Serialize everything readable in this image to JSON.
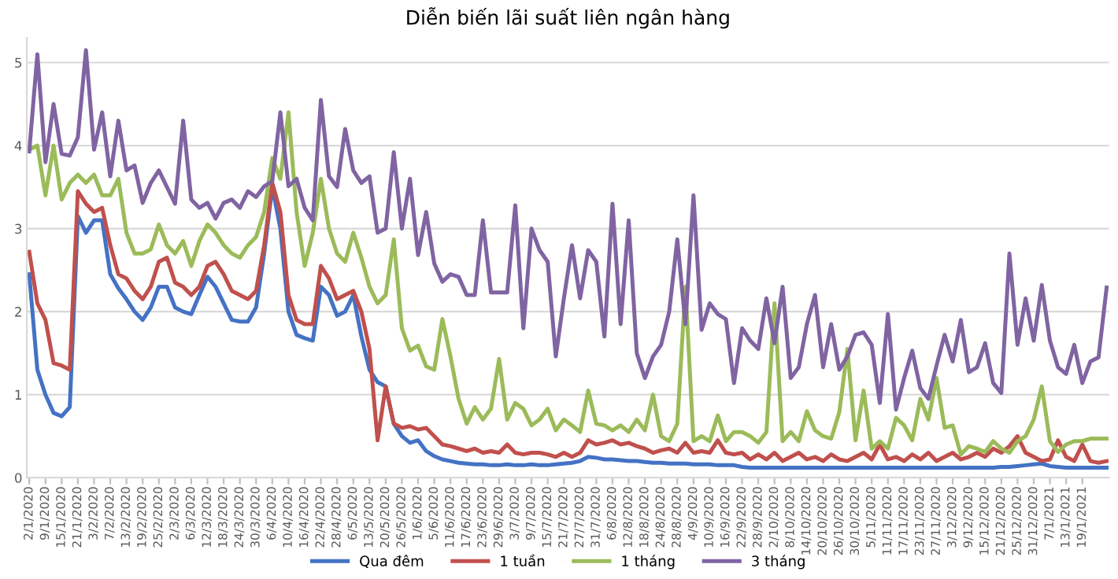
{
  "chart_data": {
    "type": "line",
    "title": "Diễn biến lãi suất liên ngân hàng",
    "categories": [
      "2/1/2020",
      null,
      "9/1/2020",
      null,
      "15/1/2020",
      null,
      "21/1/2020",
      null,
      "3/2/2020",
      null,
      "7/2/2020",
      null,
      "13/2/2020",
      null,
      "19/2/2020",
      null,
      "25/2/2020",
      null,
      "2/3/2020",
      null,
      "6/3/2020",
      null,
      "12/3/2020",
      null,
      "18/3/2020",
      null,
      "24/3/2020",
      null,
      "30/3/2020",
      null,
      "6/4/2020",
      null,
      "10/4/2020",
      null,
      "16/4/2020",
      null,
      "22/4/2020",
      null,
      "28/4/2020",
      null,
      "6/5/2020",
      null,
      "13/5/2020",
      null,
      "20/5/2020",
      null,
      "26/5/2020",
      null,
      "1/6/2020",
      null,
      "5/6/2020",
      null,
      "11/6/2020",
      null,
      "17/6/2020",
      null,
      "23/6/2020",
      null,
      "29/6/2020",
      null,
      "3/7/2020",
      null,
      "9/7/2020",
      null,
      "15/7/2020",
      null,
      "21/7/2020",
      null,
      "27/7/2020",
      null,
      "31/7/2020",
      null,
      "6/8/2020",
      null,
      "12/8/2020",
      null,
      "18/8/2020",
      null,
      "24/8/2020",
      null,
      "28/8/2020",
      null,
      "4/9/2020",
      null,
      "10/9/2020",
      null,
      "16/9/2020",
      null,
      "22/9/2020",
      null,
      "28/9/2020",
      null,
      "2/10/2020",
      null,
      "8/10/2020",
      null,
      "14/10/2020",
      null,
      "20/10/2020",
      null,
      "26/10/2020",
      null,
      "30/10/2020",
      null,
      "5/11/2020",
      null,
      "11/11/2020",
      null,
      "17/11/2020",
      null,
      "23/11/2020",
      null,
      "27/11/2020",
      null,
      "3/12/2020",
      null,
      "9/12/2020",
      null,
      "15/12/2020",
      null,
      "21/12/2020",
      null,
      "25/12/2020",
      null,
      "31/12/2020",
      null,
      "7/1/2021",
      null,
      "13/1/2021",
      null,
      "19/1/2021",
      null,
      null,
      null
    ],
    "series": [
      {
        "name": "Qua đêm",
        "color": "#4472c4",
        "values": [
          2.45,
          1.3,
          1.0,
          0.78,
          0.74,
          0.85,
          3.15,
          2.95,
          3.1,
          3.1,
          2.45,
          2.28,
          2.15,
          2.0,
          1.9,
          2.05,
          2.3,
          2.3,
          2.05,
          2.0,
          1.97,
          2.2,
          2.42,
          2.3,
          2.1,
          1.9,
          1.88,
          1.88,
          2.05,
          2.7,
          3.5,
          3.0,
          2.0,
          1.72,
          1.68,
          1.65,
          2.3,
          2.2,
          1.95,
          2.0,
          2.2,
          1.7,
          1.3,
          1.15,
          1.1,
          0.65,
          0.5,
          0.42,
          0.45,
          0.32,
          0.26,
          0.22,
          0.2,
          0.18,
          0.17,
          0.16,
          0.16,
          0.15,
          0.15,
          0.16,
          0.15,
          0.15,
          0.16,
          0.15,
          0.15,
          0.16,
          0.17,
          0.18,
          0.2,
          0.25,
          0.24,
          0.22,
          0.22,
          0.21,
          0.2,
          0.2,
          0.19,
          0.18,
          0.18,
          0.17,
          0.17,
          0.17,
          0.16,
          0.16,
          0.16,
          0.15,
          0.15,
          0.15,
          0.13,
          0.12,
          0.12,
          0.12,
          0.12,
          0.12,
          0.12,
          0.12,
          0.12,
          0.12,
          0.12,
          0.12,
          0.12,
          0.12,
          0.12,
          0.12,
          0.12,
          0.12,
          0.12,
          0.12,
          0.12,
          0.12,
          0.12,
          0.12,
          0.12,
          0.12,
          0.12,
          0.12,
          0.12,
          0.12,
          0.12,
          0.12,
          0.13,
          0.13,
          0.14,
          0.15,
          0.16,
          0.17,
          0.14,
          0.13,
          0.12,
          0.12,
          0.12,
          0.12,
          0.12,
          0.12
        ]
      },
      {
        "name": "1 tuần",
        "color": "#c0504d",
        "values": [
          2.72,
          2.1,
          1.9,
          1.38,
          1.35,
          1.3,
          3.45,
          3.3,
          3.2,
          3.25,
          2.8,
          2.45,
          2.4,
          2.25,
          2.15,
          2.3,
          2.6,
          2.65,
          2.35,
          2.3,
          2.2,
          2.3,
          2.55,
          2.6,
          2.45,
          2.25,
          2.2,
          2.15,
          2.25,
          2.8,
          3.55,
          3.2,
          2.2,
          1.9,
          1.85,
          1.85,
          2.55,
          2.4,
          2.15,
          2.2,
          2.25,
          2.0,
          1.55,
          0.45,
          1.1,
          0.65,
          0.6,
          0.62,
          0.58,
          0.6,
          0.5,
          0.4,
          0.38,
          0.35,
          0.32,
          0.35,
          0.3,
          0.32,
          0.3,
          0.4,
          0.3,
          0.28,
          0.3,
          0.3,
          0.28,
          0.25,
          0.3,
          0.25,
          0.3,
          0.45,
          0.4,
          0.42,
          0.45,
          0.4,
          0.42,
          0.38,
          0.35,
          0.3,
          0.33,
          0.35,
          0.3,
          0.42,
          0.3,
          0.32,
          0.3,
          0.45,
          0.3,
          0.28,
          0.3,
          0.22,
          0.28,
          0.22,
          0.3,
          0.2,
          0.25,
          0.3,
          0.22,
          0.25,
          0.2,
          0.28,
          0.22,
          0.2,
          0.25,
          0.3,
          0.22,
          0.4,
          0.22,
          0.25,
          0.2,
          0.28,
          0.22,
          0.3,
          0.2,
          0.25,
          0.3,
          0.22,
          0.25,
          0.3,
          0.25,
          0.35,
          0.3,
          0.38,
          0.5,
          0.3,
          0.25,
          0.2,
          0.22,
          0.45,
          0.25,
          0.2,
          0.4,
          0.2,
          0.18,
          0.2
        ]
      },
      {
        "name": "1 tháng",
        "color": "#9bbb59",
        "values": [
          3.95,
          4.0,
          3.4,
          4.0,
          3.35,
          3.55,
          3.65,
          3.55,
          3.65,
          3.4,
          3.4,
          3.6,
          2.95,
          2.7,
          2.7,
          2.75,
          3.05,
          2.8,
          2.7,
          2.85,
          2.55,
          2.85,
          3.05,
          2.95,
          2.8,
          2.7,
          2.65,
          2.8,
          2.9,
          3.2,
          3.85,
          3.6,
          4.4,
          3.2,
          2.55,
          2.95,
          3.6,
          3.0,
          2.7,
          2.6,
          2.95,
          2.65,
          2.3,
          2.1,
          2.2,
          2.87,
          1.8,
          1.53,
          1.59,
          1.34,
          1.3,
          1.91,
          1.46,
          0.95,
          0.65,
          0.85,
          0.7,
          0.83,
          1.43,
          0.7,
          0.9,
          0.83,
          0.63,
          0.7,
          0.83,
          0.57,
          0.7,
          0.63,
          0.55,
          1.05,
          0.65,
          0.63,
          0.57,
          0.63,
          0.55,
          0.7,
          0.57,
          1.0,
          0.5,
          0.44,
          0.65,
          2.3,
          0.44,
          0.5,
          0.44,
          0.75,
          0.44,
          0.55,
          0.55,
          0.5,
          0.42,
          0.55,
          2.1,
          0.44,
          0.55,
          0.44,
          0.8,
          0.57,
          0.5,
          0.47,
          0.79,
          1.55,
          0.45,
          1.05,
          0.35,
          0.44,
          0.35,
          0.72,
          0.63,
          0.45,
          0.95,
          0.7,
          1.2,
          0.6,
          0.63,
          0.28,
          0.38,
          0.35,
          0.31,
          0.44,
          0.35,
          0.3,
          0.44,
          0.5,
          0.7,
          1.1,
          0.44,
          0.31,
          0.4,
          0.44,
          0.44,
          0.47,
          0.47,
          0.47
        ]
      },
      {
        "name": "3 tháng",
        "color": "#8064a2",
        "values": [
          3.93,
          5.1,
          3.8,
          4.5,
          3.9,
          3.88,
          4.1,
          5.15,
          3.95,
          4.4,
          3.63,
          4.3,
          3.7,
          3.76,
          3.31,
          3.55,
          3.7,
          3.5,
          3.3,
          4.3,
          3.35,
          3.25,
          3.31,
          3.12,
          3.31,
          3.35,
          3.25,
          3.45,
          3.38,
          3.51,
          3.57,
          4.4,
          3.51,
          3.6,
          3.25,
          3.1,
          4.55,
          3.63,
          3.5,
          4.2,
          3.7,
          3.55,
          3.63,
          2.95,
          3.0,
          3.92,
          3.0,
          3.6,
          2.68,
          3.2,
          2.58,
          2.36,
          2.45,
          2.42,
          2.2,
          2.2,
          3.1,
          2.23,
          2.23,
          2.23,
          3.28,
          1.8,
          3.0,
          2.74,
          2.6,
          1.46,
          2.16,
          2.8,
          2.16,
          2.74,
          2.6,
          1.7,
          3.3,
          1.85,
          3.1,
          1.5,
          1.2,
          1.46,
          1.6,
          2.0,
          2.87,
          1.85,
          3.4,
          1.78,
          2.1,
          1.97,
          1.91,
          1.14,
          1.8,
          1.65,
          1.55,
          2.16,
          1.62,
          2.3,
          1.2,
          1.33,
          1.85,
          2.2,
          1.33,
          1.85,
          1.3,
          1.46,
          1.72,
          1.75,
          1.6,
          0.9,
          1.97,
          0.82,
          1.2,
          1.53,
          1.08,
          0.95,
          1.35,
          1.72,
          1.4,
          1.9,
          1.27,
          1.33,
          1.62,
          1.14,
          1.02,
          2.7,
          1.6,
          2.16,
          1.65,
          2.32,
          1.65,
          1.33,
          1.25,
          1.6,
          1.14,
          1.4,
          1.45,
          2.29
        ]
      }
    ],
    "ylim": [
      0,
      5.3
    ],
    "yticks": [
      0,
      1,
      2,
      3,
      4,
      5
    ],
    "grid": "y",
    "legend": "bottom",
    "marker": "none",
    "line_style": "solid"
  }
}
